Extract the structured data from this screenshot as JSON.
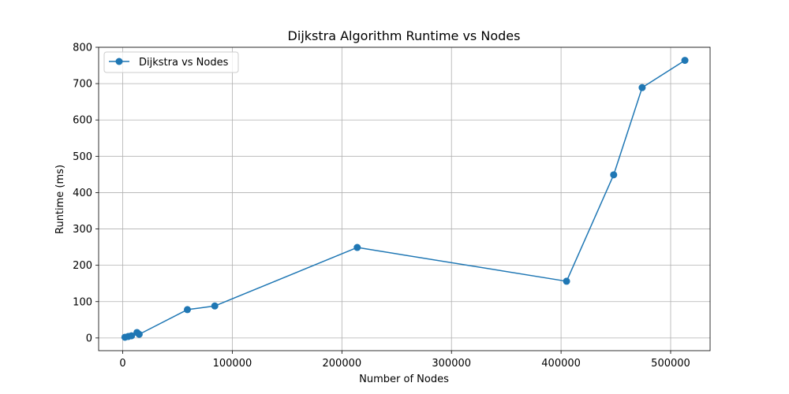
{
  "chart_data": {
    "type": "line",
    "title": "Dijkstra Algorithm Runtime vs Nodes",
    "xlabel": "Number of Nodes",
    "ylabel": "Runtime (ms)",
    "xlim": [
      -22000,
      536000
    ],
    "ylim": [
      -35,
      800
    ],
    "xticks": [
      0,
      100000,
      200000,
      300000,
      400000,
      500000
    ],
    "xtick_labels": [
      "0",
      "100000",
      "200000",
      "300000",
      "400000",
      "500000"
    ],
    "yticks": [
      0,
      100,
      200,
      300,
      400,
      500,
      600,
      700,
      800
    ],
    "ytick_labels": [
      "0",
      "100",
      "200",
      "300",
      "400",
      "500",
      "600",
      "700",
      "800"
    ],
    "grid": true,
    "legend_position": "top-left",
    "series": [
      {
        "name": "Dijkstra vs Nodes",
        "color": "#1f77b4",
        "marker": "circle",
        "x": [
          2000,
          5000,
          8000,
          13000,
          15000,
          59000,
          84000,
          214000,
          405000,
          448000,
          474000,
          513000
        ],
        "y": [
          2,
          4,
          6,
          15,
          10,
          78,
          88,
          249,
          156,
          449,
          689,
          764
        ]
      }
    ]
  }
}
